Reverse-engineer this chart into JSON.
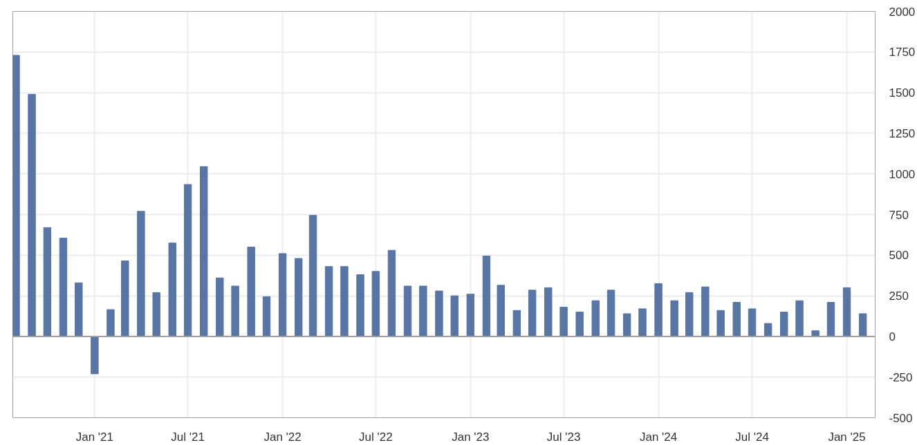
{
  "chart_data": {
    "type": "bar",
    "x": [
      "2020-08",
      "2020-09",
      "2020-10",
      "2020-11",
      "2020-12",
      "2021-01",
      "2021-02",
      "2021-03",
      "2021-04",
      "2021-05",
      "2021-06",
      "2021-07",
      "2021-08",
      "2021-09",
      "2021-10",
      "2021-11",
      "2021-12",
      "2022-01",
      "2022-02",
      "2022-03",
      "2022-04",
      "2022-05",
      "2022-06",
      "2022-07",
      "2022-08",
      "2022-09",
      "2022-10",
      "2022-11",
      "2022-12",
      "2023-01",
      "2023-02",
      "2023-03",
      "2023-04",
      "2023-05",
      "2023-06",
      "2023-07",
      "2023-08",
      "2023-09",
      "2023-10",
      "2023-11",
      "2023-12",
      "2024-01",
      "2024-02",
      "2024-03",
      "2024-04",
      "2024-05",
      "2024-06",
      "2024-07",
      "2024-08",
      "2024-09",
      "2024-10",
      "2024-11",
      "2024-12",
      "2025-01",
      "2025-02"
    ],
    "values": [
      1730,
      1490,
      670,
      605,
      330,
      -230,
      165,
      465,
      770,
      270,
      575,
      935,
      1045,
      360,
      310,
      550,
      245,
      510,
      480,
      745,
      430,
      430,
      380,
      400,
      530,
      310,
      310,
      280,
      250,
      260,
      495,
      315,
      160,
      285,
      300,
      180,
      150,
      220,
      285,
      140,
      170,
      325,
      220,
      270,
      305,
      160,
      210,
      170,
      80,
      150,
      220,
      35,
      210,
      300,
      140
    ],
    "color": "#5975a4",
    "xlim": [
      "2020-07-26",
      "2025-02-25"
    ],
    "xticks": [
      {
        "value": "2021-01-01",
        "label": "Jan '21"
      },
      {
        "value": "2021-07-01",
        "label": "Jul '21"
      },
      {
        "value": "2022-01-01",
        "label": "Jan '22"
      },
      {
        "value": "2022-07-01",
        "label": "Jul '22"
      },
      {
        "value": "2023-01-01",
        "label": "Jan '23"
      },
      {
        "value": "2023-07-01",
        "label": "Jul '23"
      },
      {
        "value": "2024-01-01",
        "label": "Jan '24"
      },
      {
        "value": "2024-07-01",
        "label": "Jul '24"
      },
      {
        "value": "2025-01-01",
        "label": "Jan '25"
      }
    ],
    "ylim": [
      -500,
      2000
    ],
    "yticks": [
      -500,
      -250,
      0,
      250,
      500,
      750,
      1000,
      1250,
      1500,
      1750,
      2000
    ],
    "ref_lines": [
      {
        "axis": "y",
        "value": 0,
        "color": "#a0a0a0"
      }
    ],
    "grid": true
  }
}
